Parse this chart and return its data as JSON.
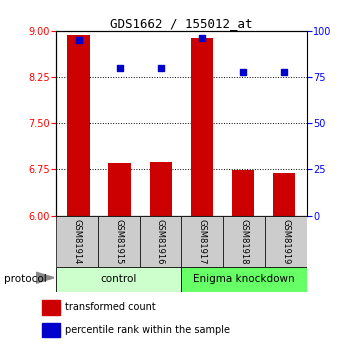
{
  "title": "GDS1662 / 155012_at",
  "samples": [
    "GSM81914",
    "GSM81915",
    "GSM81916",
    "GSM81917",
    "GSM81918",
    "GSM81919"
  ],
  "bar_values": [
    8.93,
    6.85,
    6.87,
    8.88,
    6.74,
    6.69
  ],
  "percentile_values": [
    95,
    80,
    80,
    96,
    78,
    78
  ],
  "bar_bottom": 6.0,
  "ylim_left": [
    6.0,
    9.0
  ],
  "ylim_right": [
    0,
    100
  ],
  "yticks_left": [
    6,
    6.75,
    7.5,
    8.25,
    9
  ],
  "yticks_right": [
    0,
    25,
    50,
    75,
    100
  ],
  "bar_color": "#cc0000",
  "dot_color": "#0000cc",
  "control_label": "control",
  "knockdown_label": "Enigma knockdown",
  "protocol_label": "protocol",
  "legend_bar_label": "transformed count",
  "legend_dot_label": "percentile rank within the sample",
  "control_bg": "#ccffcc",
  "knockdown_bg": "#66ff66",
  "xlabel_bg": "#cccccc",
  "title_fontsize": 9,
  "tick_fontsize": 7,
  "label_fontsize": 7
}
